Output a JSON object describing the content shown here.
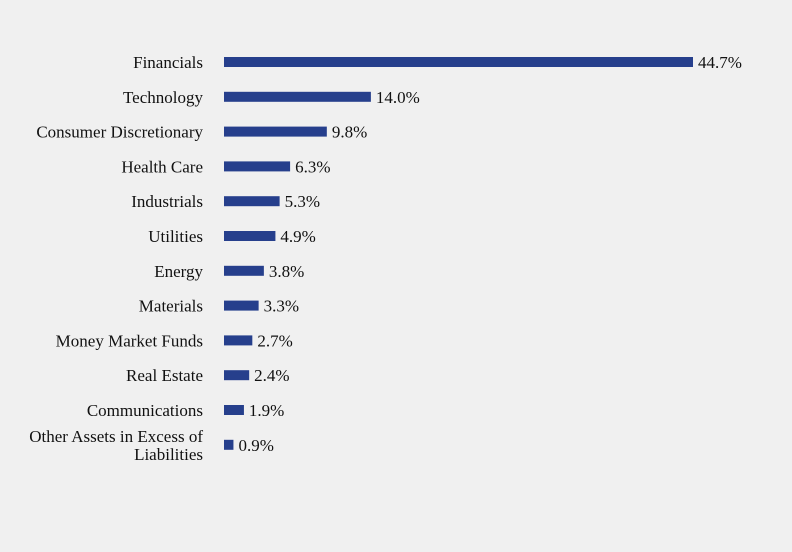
{
  "colors": {
    "background": "#f0f0f0",
    "bar": "#263f8c",
    "text": "#111111"
  },
  "chart_data": {
    "type": "bar",
    "orientation": "horizontal",
    "title": "",
    "xlabel": "",
    "ylabel": "",
    "grid": false,
    "value_suffix": "%",
    "xlim": [
      0,
      44.7
    ],
    "categories": [
      "Financials",
      "Technology",
      "Consumer Discretionary",
      "Health Care",
      "Industrials",
      "Utilities",
      "Energy",
      "Materials",
      "Money Market Funds",
      "Real Estate",
      "Communications",
      "Other Assets in Excess of Liabilities"
    ],
    "values": [
      44.7,
      14.0,
      9.8,
      6.3,
      5.3,
      4.9,
      3.8,
      3.3,
      2.7,
      2.4,
      1.9,
      0.9
    ],
    "data_labels": [
      "44.7%",
      "14.0%",
      "9.8%",
      "6.3%",
      "5.3%",
      "4.9%",
      "3.8%",
      "3.3%",
      "2.7%",
      "2.4%",
      "1.9%",
      "0.9%"
    ]
  }
}
